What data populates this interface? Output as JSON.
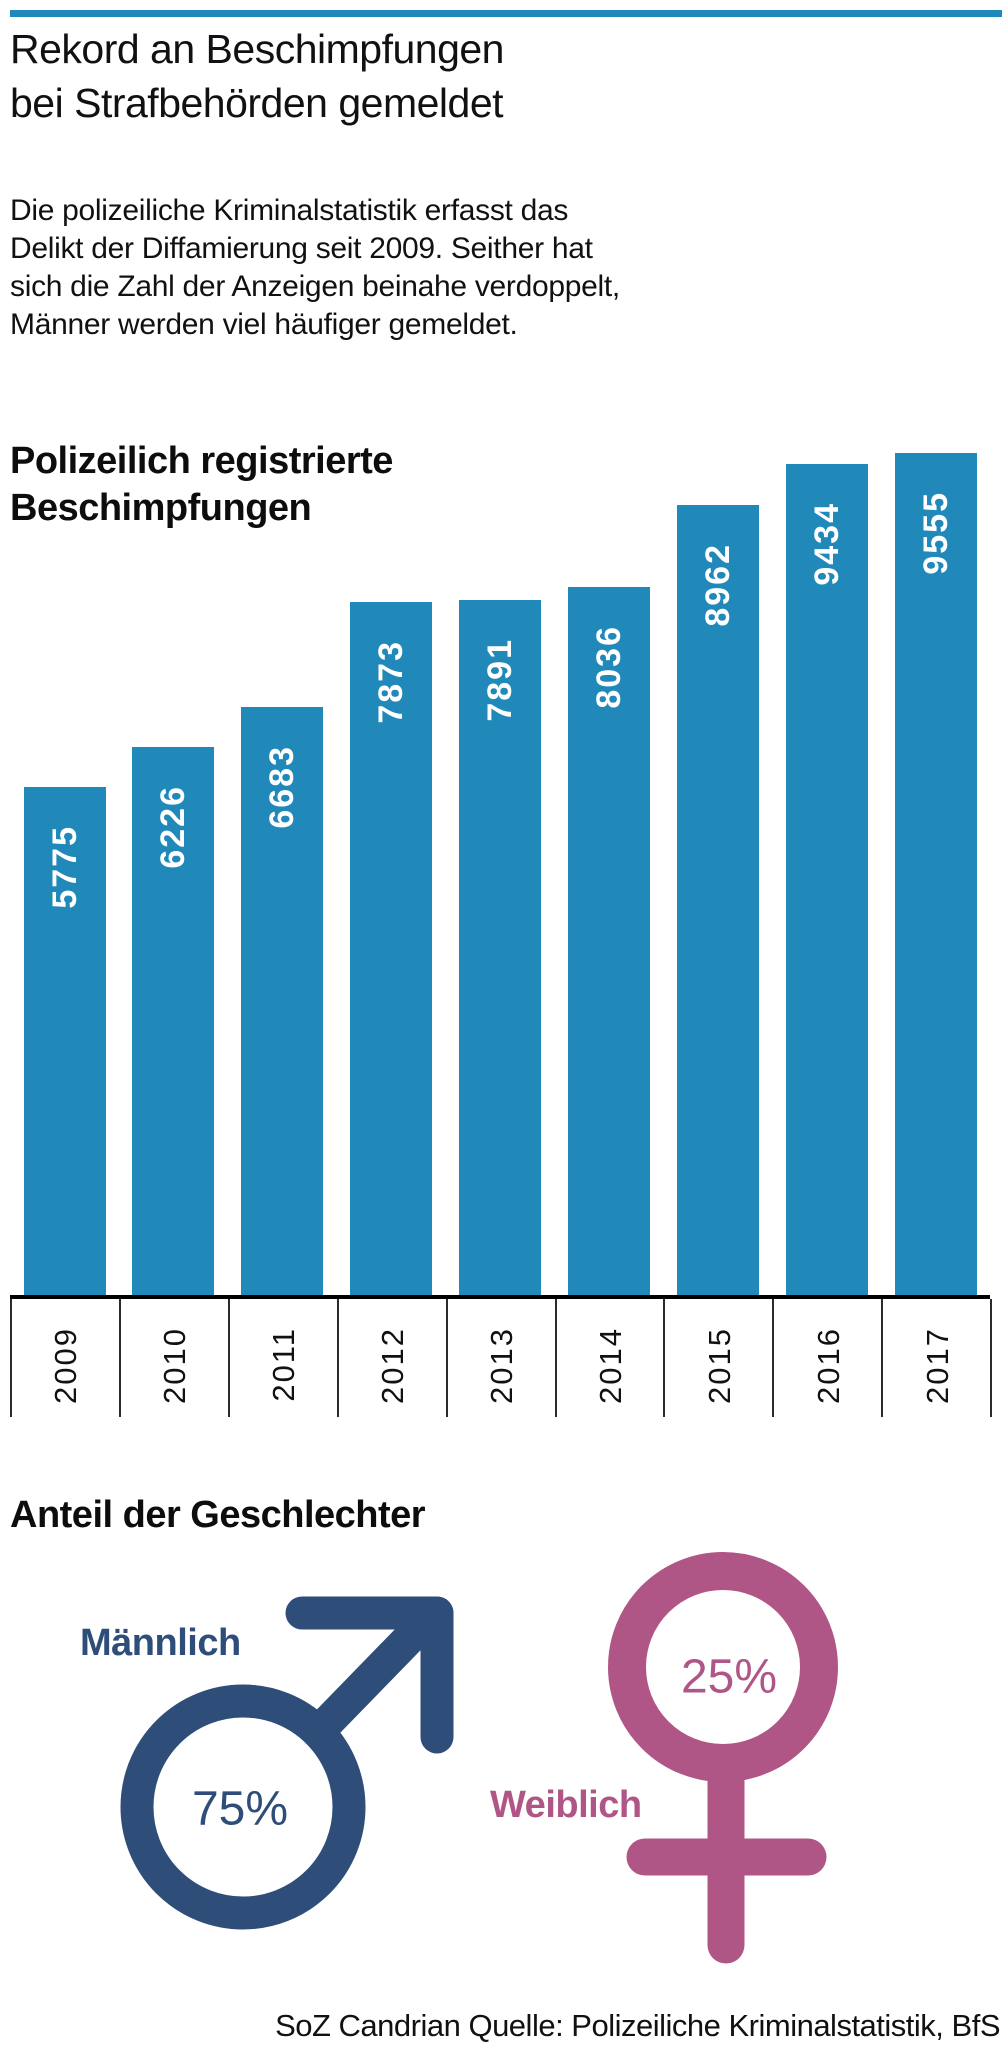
{
  "meta": {
    "accent_color": "#2089ba"
  },
  "header": {
    "title_lines": [
      "Rekord an Beschimpfungen",
      "bei Strafbehörden gemeldet"
    ],
    "intro_lines": [
      "Die polizeiliche Kriminalstatistik erfasst das",
      "Delikt der Diffamierung seit 2009. Seither hat",
      "sich die Zahl der Anzeigen beinahe verdoppelt,",
      "Männer werden viel häufiger gemeldet."
    ]
  },
  "chart_data": {
    "type": "bar",
    "title": "Polizeilich registrierte Beschimpfungen",
    "title_lines": [
      "Polizeilich registrierte",
      "Beschimpfungen"
    ],
    "categories": [
      "2009",
      "2010",
      "2011",
      "2012",
      "2013",
      "2014",
      "2015",
      "2016",
      "2017"
    ],
    "values": [
      5775,
      6226,
      6683,
      7873,
      7891,
      8036,
      8962,
      9434,
      9555
    ],
    "ylim": [
      0,
      9555
    ],
    "bar_color": "#2089ba",
    "value_label_color": "#ffffff",
    "grid": false,
    "legend": "none",
    "value_labels_rotated": true,
    "category_labels_rotated": true
  },
  "genders": {
    "heading": "Anteil der Geschlechter",
    "male": {
      "label": "Männlich",
      "value": "75%",
      "color": "#2e4d78"
    },
    "female": {
      "label": "Weiblich",
      "value": "25%",
      "color": "#b05687"
    }
  },
  "footer": {
    "source": "SoZ Candrian Quelle: Polizeiliche Kriminalstatistik, BfS"
  }
}
